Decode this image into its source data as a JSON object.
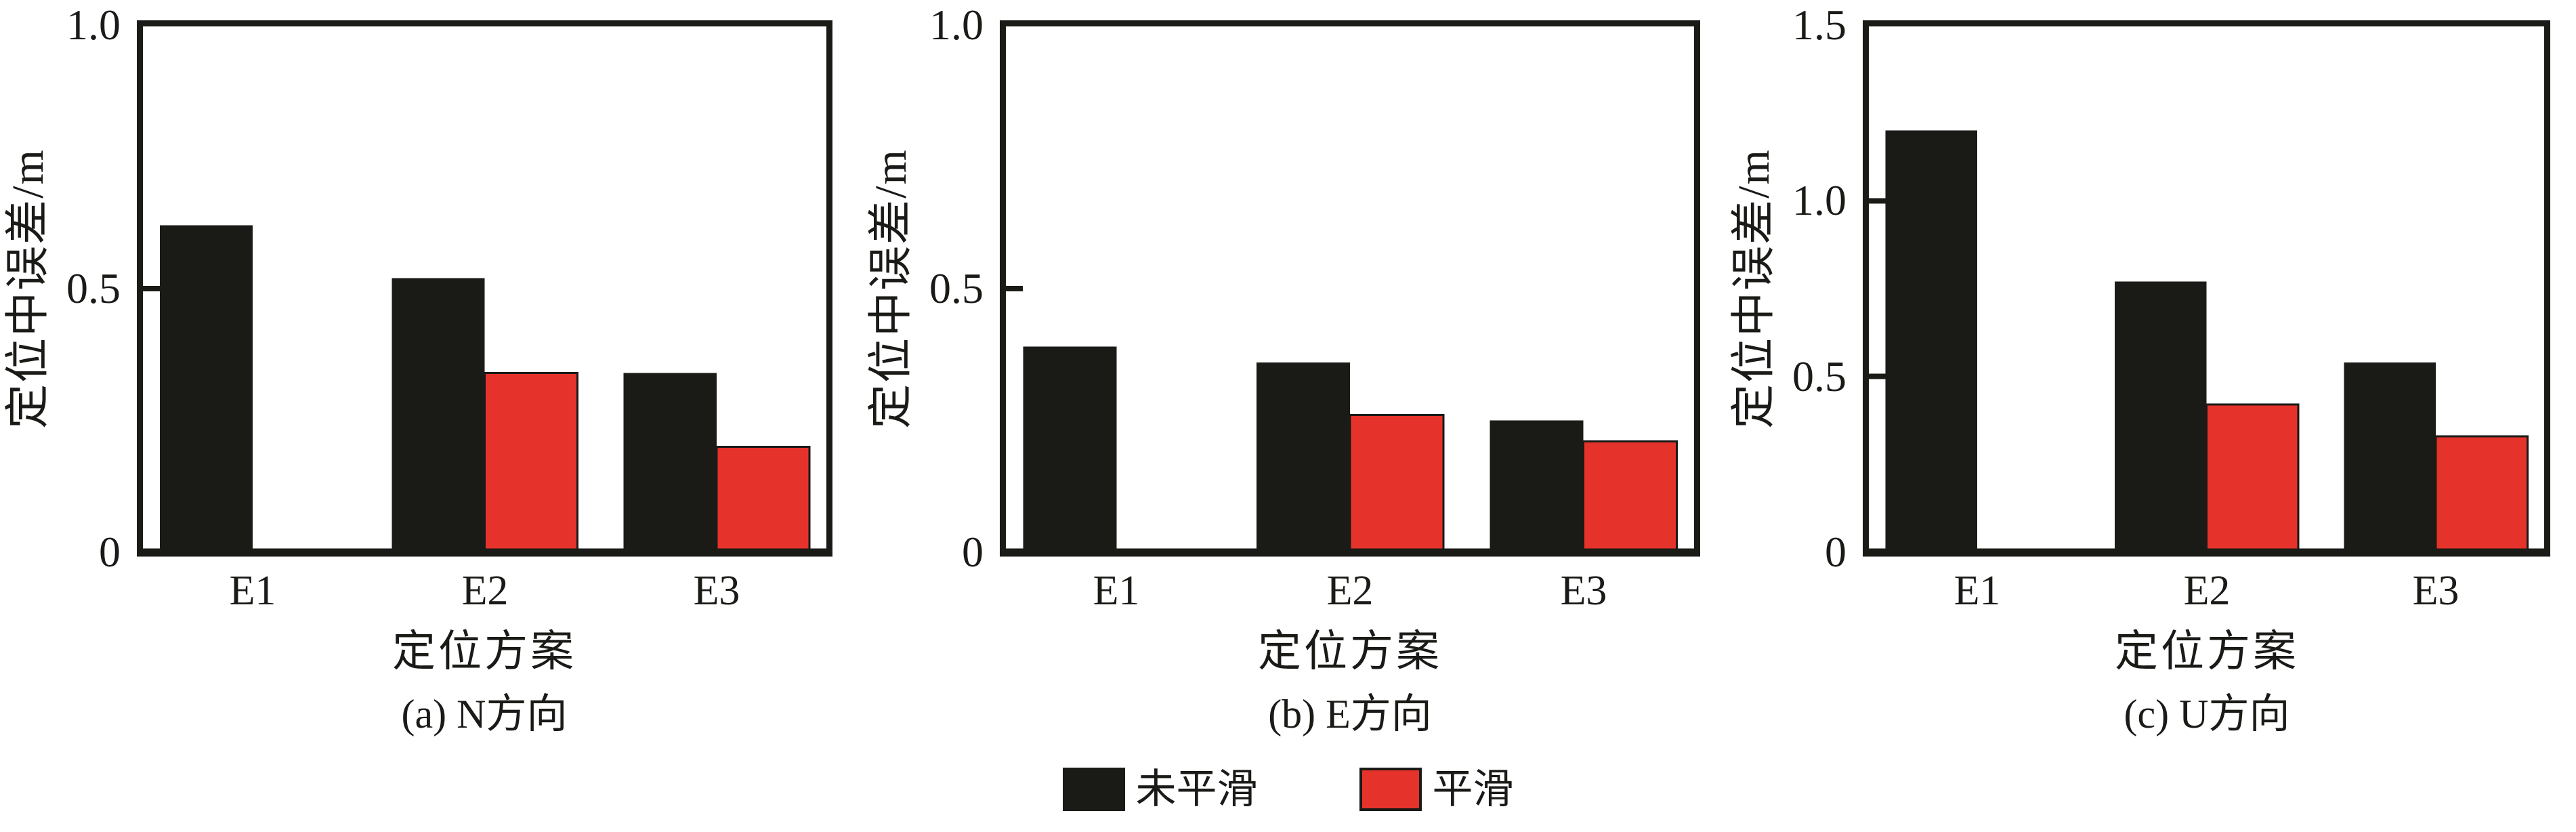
{
  "figure": {
    "background": "#ffffff",
    "bar_black": "#1a1a17",
    "bar_red": "#e5332b",
    "axis_color": "#1a1a17"
  },
  "legend": {
    "position": "bottom-center",
    "items": [
      {
        "label": "未平滑",
        "color": "#1a1a17"
      },
      {
        "label": "平滑",
        "color": "#e5332b"
      }
    ]
  },
  "chart_data": [
    {
      "type": "bar",
      "panel_caption": "(a) N方向",
      "xlabel": "定位方案",
      "ylabel": "定位中误差/m",
      "categories": [
        "E1",
        "E2",
        "E3"
      ],
      "series": [
        {
          "name": "未平滑",
          "color": "#1a1a17",
          "values": [
            0.62,
            0.52,
            0.34
          ]
        },
        {
          "name": "平滑",
          "color": "#e5332b",
          "values": [
            null,
            0.34,
            0.2
          ]
        }
      ],
      "ylim": [
        0,
        1.0
      ],
      "yticks": [
        0,
        0.5,
        1.0
      ],
      "ytick_labels": [
        "0",
        "0.5",
        "1.0"
      ],
      "grid": false,
      "legend_position": "shared-bottom"
    },
    {
      "type": "bar",
      "panel_caption": "(b) E方向",
      "xlabel": "定位方案",
      "ylabel": "定位中误差/m",
      "categories": [
        "E1",
        "E2",
        "E3"
      ],
      "series": [
        {
          "name": "未平滑",
          "color": "#1a1a17",
          "values": [
            0.39,
            0.36,
            0.25
          ]
        },
        {
          "name": "平滑",
          "color": "#e5332b",
          "values": [
            null,
            0.26,
            0.21
          ]
        }
      ],
      "ylim": [
        0,
        1.0
      ],
      "yticks": [
        0,
        0.5,
        1.0
      ],
      "ytick_labels": [
        "0",
        "0.5",
        "1.0"
      ],
      "grid": false,
      "legend_position": "shared-bottom"
    },
    {
      "type": "bar",
      "panel_caption": "(c) U方向",
      "xlabel": "定位方案",
      "ylabel": "定位中误差/m",
      "categories": [
        "E1",
        "E2",
        "E3"
      ],
      "series": [
        {
          "name": "未平滑",
          "color": "#1a1a17",
          "values": [
            1.2,
            0.77,
            0.54
          ]
        },
        {
          "name": "平滑",
          "color": "#e5332b",
          "values": [
            null,
            0.42,
            0.33
          ]
        }
      ],
      "ylim": [
        0,
        1.5
      ],
      "yticks": [
        0,
        0.5,
        1.0,
        1.5
      ],
      "ytick_labels": [
        "0",
        "0.5",
        "1.0",
        "1.5"
      ],
      "grid": false,
      "legend_position": "shared-bottom"
    }
  ]
}
